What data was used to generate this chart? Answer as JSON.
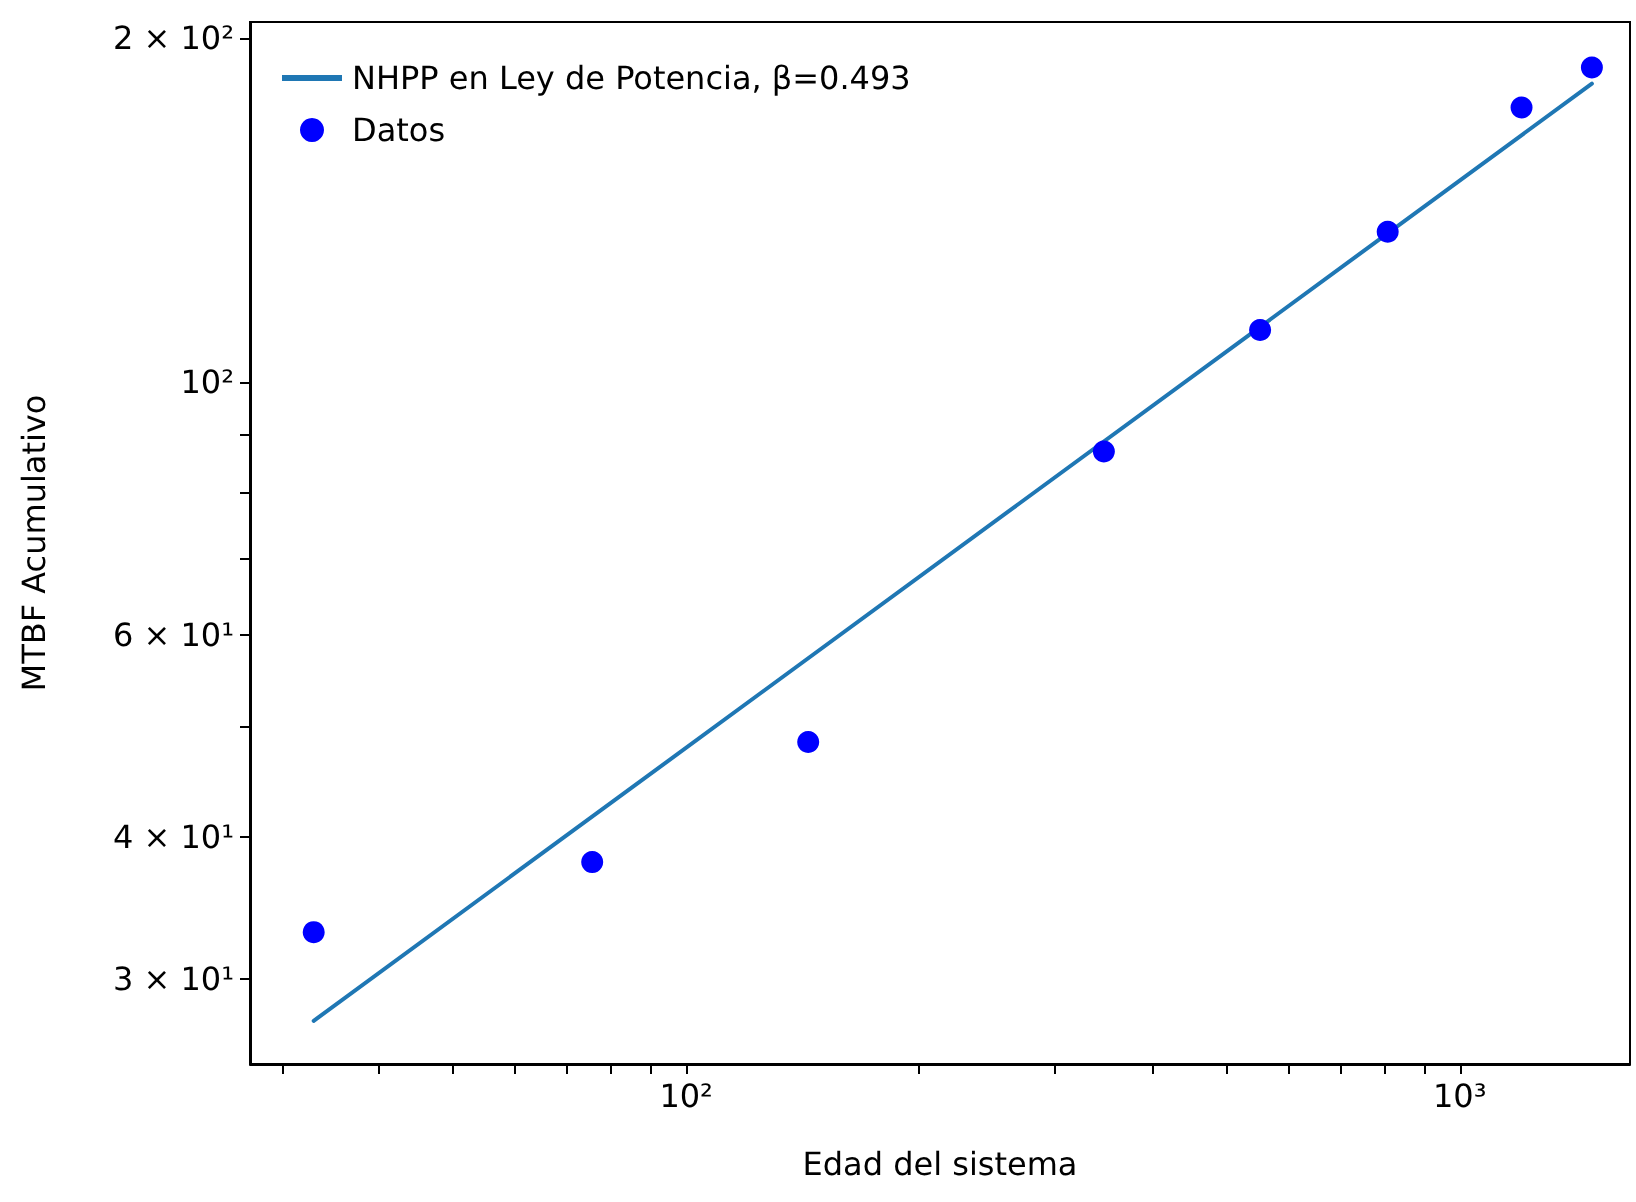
{
  "chart_data": {
    "type": "scatter",
    "xlabel": "Edad del sistema",
    "ylabel": "MTBF Acumulativo",
    "log": "xy",
    "grid": false,
    "legend": "top left",
    "xlim": [
      27.3,
      1660
    ],
    "ylim": [
      25.3,
      206.5
    ],
    "xticks": [
      {
        "value": 30,
        "label": null
      },
      {
        "value": 40,
        "label": null
      },
      {
        "value": 50,
        "label": null
      },
      {
        "value": 60,
        "label": null
      },
      {
        "value": 70,
        "label": null
      },
      {
        "value": 80,
        "label": null
      },
      {
        "value": 90,
        "label": null
      },
      {
        "value": 100,
        "label": "10²"
      },
      {
        "value": 200,
        "label": null
      },
      {
        "value": 300,
        "label": null
      },
      {
        "value": 400,
        "label": null
      },
      {
        "value": 500,
        "label": null
      },
      {
        "value": 600,
        "label": null
      },
      {
        "value": 700,
        "label": null
      },
      {
        "value": 800,
        "label": null
      },
      {
        "value": 900,
        "label": null
      },
      {
        "value": 1000,
        "label": "10³"
      }
    ],
    "yticks": [
      {
        "value": 30,
        "label": "3 × 10¹"
      },
      {
        "value": 40,
        "label": "4 × 10¹"
      },
      {
        "value": 50,
        "label": null
      },
      {
        "value": 60,
        "label": "6 × 10¹"
      },
      {
        "value": 70,
        "label": null
      },
      {
        "value": 80,
        "label": null
      },
      {
        "value": 90,
        "label": null
      },
      {
        "value": 100,
        "label": "10²"
      },
      {
        "value": 200,
        "label": "2 × 10²"
      }
    ],
    "series": [
      {
        "name": "NHPP en Ley de Potencia, β=0.493",
        "type": "line",
        "color": "#1f77b4",
        "marker": "none",
        "line_style": "solid",
        "x": [
          33.0,
          1482
        ],
        "values": [
          27.6,
          182.4
        ]
      },
      {
        "name": "Datos",
        "type": "scatter",
        "color": "#0000ff",
        "marker": "circle",
        "x": [
          33.0,
          75.6,
          143.8,
          346.7,
          552,
          807,
          1202,
          1482
        ],
        "values": [
          33.0,
          38.0,
          48.4,
          86.9,
          111,
          135.3,
          173.8,
          188.4
        ]
      }
    ]
  }
}
